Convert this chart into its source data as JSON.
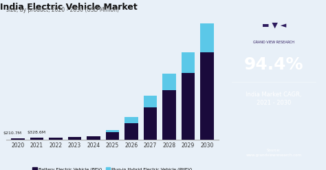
{
  "title": "India Electric Vehicle Market",
  "subtitle": "size, by product, 2020 - 2030 (USD Million)",
  "years": [
    "2020",
    "2021",
    "2022",
    "2023",
    "2024",
    "2025",
    "2026",
    "2027",
    "2028",
    "2029",
    "2030"
  ],
  "bev": [
    200,
    310,
    340,
    380,
    500,
    1200,
    2800,
    5500,
    8500,
    11500,
    15000
  ],
  "phev": [
    10,
    18,
    20,
    25,
    60,
    350,
    1100,
    2000,
    2800,
    3500,
    5000
  ],
  "annotations": [
    "$210.7M",
    "$328.6M"
  ],
  "bev_color": "#1a0a3c",
  "phev_color": "#5bc8e8",
  "bg_color": "#e8f0f8",
  "right_panel_color": "#2d1b5e",
  "cagr_text": "94.4%",
  "cagr_label": "India Market CAGR,\n2021 - 2030",
  "source_text": "Source:\nwww.grandviewresearch.com",
  "legend_bev": "Battery Electric Vehicle (BEV)",
  "legend_phev": "Plug-in Hybrid Electric Vehicle (PHEV)"
}
